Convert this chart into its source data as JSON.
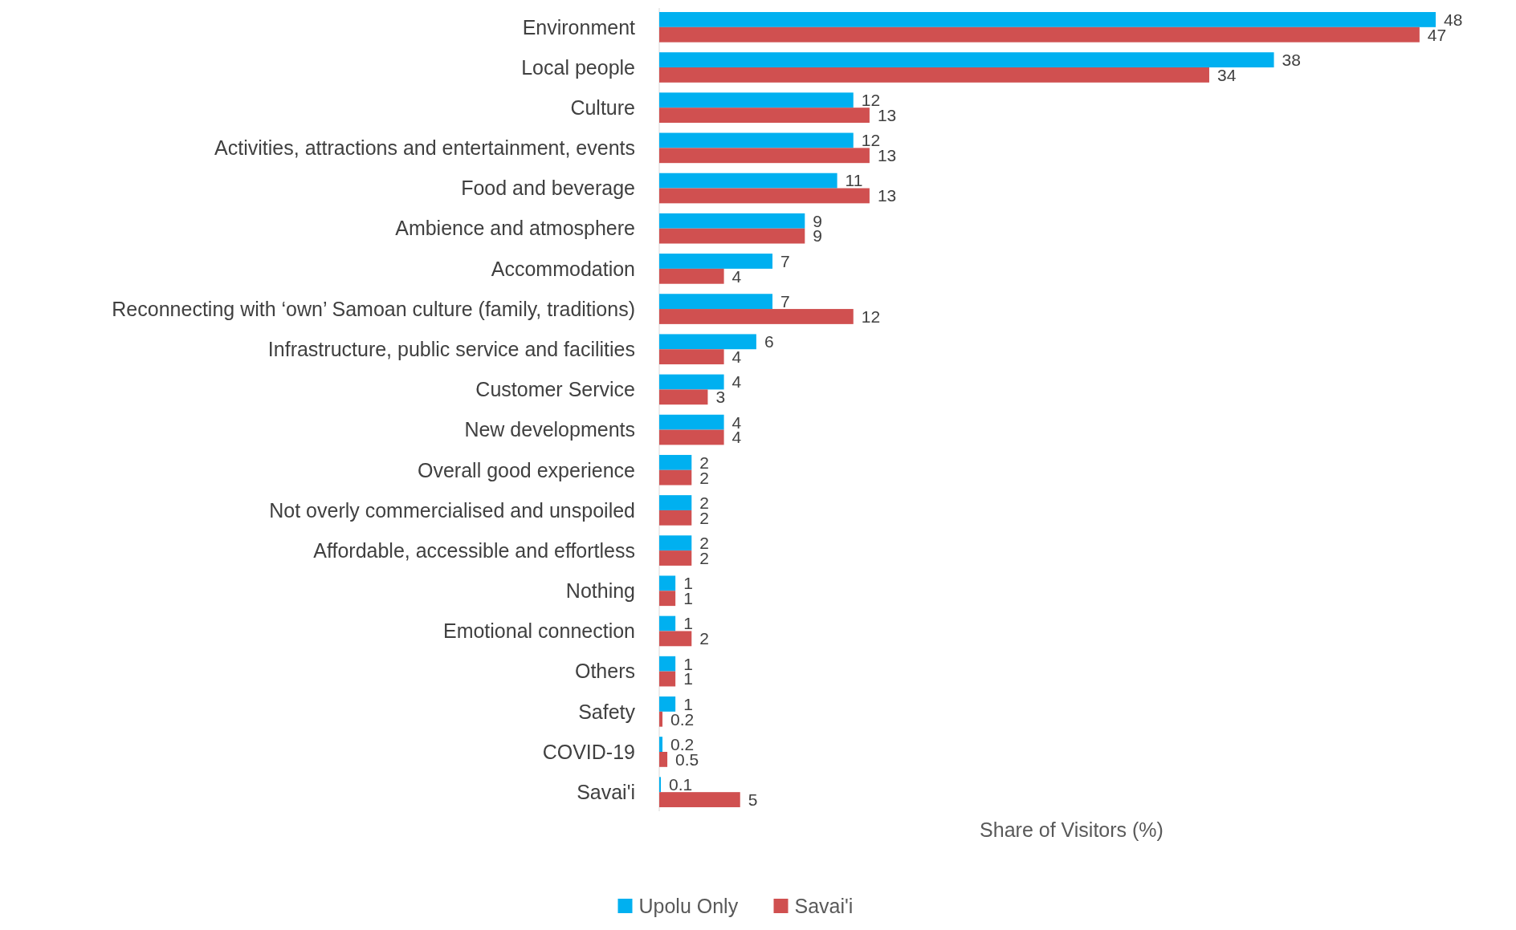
{
  "chart_data": {
    "type": "bar",
    "orientation": "horizontal",
    "xlabel": "Share of Visitors (%)",
    "categories": [
      "Environment",
      "Local people",
      "Culture",
      "Activities, attractions and entertainment, events",
      "Food and beverage",
      "Ambience and atmosphere",
      "Accommodation",
      "Reconnecting with ‘own’ Samoan culture (family, traditions)",
      "Infrastructure, public service and facilities",
      "Customer Service",
      "New developments",
      "Overall good experience",
      "Not overly commercialised and unspoiled",
      "Affordable, accessible and effortless",
      "Nothing",
      "Emotional connection",
      "Others",
      "Safety",
      "COVID-19",
      "Savai'i"
    ],
    "series": [
      {
        "name": "Upolu Only",
        "color": "#00b0f0",
        "values": [
          48,
          38,
          12,
          12,
          11,
          9,
          7,
          7,
          6,
          4,
          4,
          2,
          2,
          2,
          1,
          1,
          1,
          1,
          0.2,
          0.1
        ]
      },
      {
        "name": "Savai'i",
        "color": "#d05050",
        "values": [
          47,
          34,
          13,
          13,
          13,
          9,
          4,
          12,
          4,
          3,
          4,
          2,
          2,
          2,
          1,
          2,
          1,
          0.2,
          0.5,
          5
        ]
      }
    ],
    "data_labels": true,
    "legend": "bottom"
  }
}
